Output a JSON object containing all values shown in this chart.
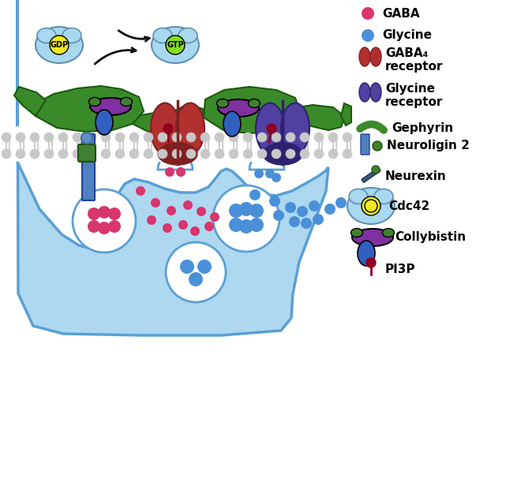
{
  "bg_color": "#ffffff",
  "presynaptic_fill": "#add8f0",
  "presynaptic_stroke": "#5a9fd4",
  "membrane_gray": "#c8c8c8",
  "gaba_color": "#d9356e",
  "glycine_color": "#4a90d9",
  "gaba_receptor_color": "#b03030",
  "gaba_receptor_dark": "#802020",
  "glycine_receptor_color": "#5040a0",
  "glycine_receptor_dark": "#302070",
  "gephyrin_color": "#3a8a2a",
  "gephyrin_edge": "#1a5a0a",
  "neuroligin_color": "#5080c0",
  "neuroligin_edge": "#2040a0",
  "neurexin_color": "#3a5a7a",
  "neurexin_edge": "#1a3a5a",
  "cdc42_fill": "#a8d8f0",
  "cdc42_edge": "#6090b0",
  "cdc42_center_gdp": "#f0e820",
  "cdc42_center_gtp": "#80e020",
  "collybistin_purple": "#8030a0",
  "collybistin_green": "#408030",
  "collybistin_blue": "#3060c0",
  "pi3p_color": "#900020",
  "arrow_color": "#101010",
  "legend_labels": [
    "GABA",
    "Glycine",
    "GABA₄\nreceptor",
    "Glycine\nreceptor",
    "Gephyrin",
    "Neuroligin 2",
    "Neurexin",
    "Cdc42",
    "Collybistin",
    "PI3P"
  ],
  "legend_fontsize": 11
}
